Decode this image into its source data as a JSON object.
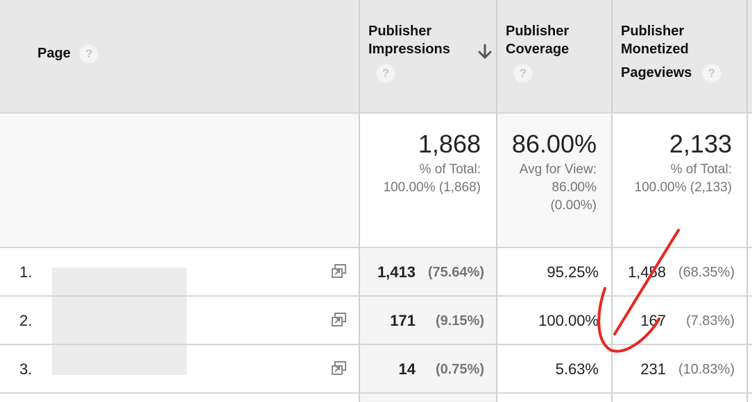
{
  "header": {
    "page_label": "Page",
    "col1_line1": "Publisher",
    "col1_line2": "Impressions",
    "col2_line1": "Publisher",
    "col2_line2": "Coverage",
    "col3_line1": "Publisher",
    "col3_line2": "Monetized",
    "col3_line3": "Pageviews",
    "help_glyph": "?"
  },
  "summary": {
    "impressions_value": "1,868",
    "impressions_sub1": "% of Total:",
    "impressions_sub2": "100.00% (1,868)",
    "coverage_value": "86.00%",
    "coverage_sub1": "Avg for View:",
    "coverage_sub2": "86.00%",
    "coverage_sub3": "(0.00%)",
    "pageviews_value": "2,133",
    "pageviews_sub1": "% of Total:",
    "pageviews_sub2": "100.00% (2,133)"
  },
  "rows": [
    {
      "num": "1.",
      "impressions": "1,413",
      "impressions_pct": "(75.64%)",
      "coverage": "95.25%",
      "pageviews": "1,458",
      "pageviews_pct": "(68.35%)"
    },
    {
      "num": "2.",
      "impressions": "171",
      "impressions_pct": "(9.15%)",
      "coverage": "100.00%",
      "pageviews": "167",
      "pageviews_pct": "(7.83%)"
    },
    {
      "num": "3.",
      "impressions": "14",
      "impressions_pct": "(0.75%)",
      "coverage": "5.63%",
      "pageviews": "231",
      "pageviews_pct": "(10.83%)"
    }
  ],
  "colors": {
    "header_bg": "#e8e8e8",
    "annotation": "#e8261f"
  },
  "icons": [
    "help-icon",
    "sort-down-arrow-icon",
    "open-external-icon"
  ]
}
